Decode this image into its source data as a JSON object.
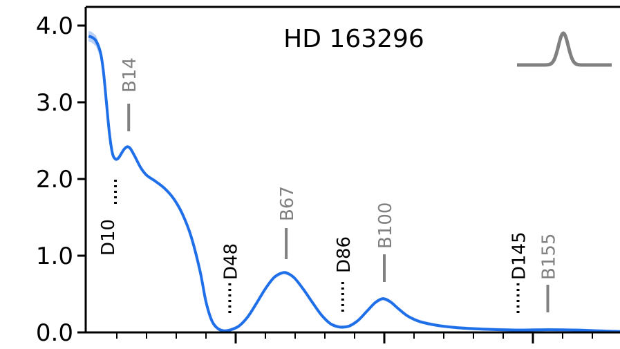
{
  "chart_data": {
    "type": "line",
    "title": "HD 163296",
    "xlabel": "",
    "ylabel": "",
    "xlim": [
      0,
      180
    ],
    "ylim": [
      0,
      4.0
    ],
    "yticks": [
      0.0,
      1.0,
      2.0,
      3.0,
      4.0
    ],
    "ytick_labels": [
      "0.0",
      "1.0",
      "2.0",
      "3.0",
      "4.0"
    ],
    "xtick_major": [
      50,
      100,
      150
    ],
    "xtick_minor": [
      10,
      20,
      30,
      40,
      60,
      70,
      80,
      90,
      110,
      120,
      130,
      140,
      160,
      170
    ],
    "line_color": "#1f6fe8",
    "band_color": "#9dbcf2",
    "series": [
      {
        "values": [
          [
            0.5,
            3.86
          ],
          [
            1.5,
            3.85
          ],
          [
            3,
            3.8
          ],
          [
            4.5,
            3.65
          ],
          [
            5.5,
            3.4
          ],
          [
            6.5,
            3.0
          ],
          [
            7.5,
            2.6
          ],
          [
            8.5,
            2.34
          ],
          [
            9.5,
            2.26
          ],
          [
            10.5,
            2.27
          ],
          [
            11.5,
            2.33
          ],
          [
            12.5,
            2.39
          ],
          [
            13.5,
            2.42
          ],
          [
            14.5,
            2.4
          ],
          [
            16,
            2.3
          ],
          [
            18,
            2.15
          ],
          [
            20,
            2.05
          ],
          [
            23,
            1.97
          ],
          [
            26,
            1.88
          ],
          [
            29,
            1.75
          ],
          [
            32,
            1.55
          ],
          [
            35,
            1.25
          ],
          [
            38,
            0.8
          ],
          [
            40,
            0.4
          ],
          [
            42,
            0.15
          ],
          [
            44,
            0.05
          ],
          [
            46,
            0.02
          ],
          [
            48,
            0.03
          ],
          [
            51,
            0.08
          ],
          [
            54,
            0.2
          ],
          [
            57,
            0.38
          ],
          [
            60,
            0.57
          ],
          [
            63,
            0.72
          ],
          [
            66,
            0.78
          ],
          [
            68,
            0.76
          ],
          [
            70,
            0.7
          ],
          [
            73,
            0.55
          ],
          [
            76,
            0.38
          ],
          [
            79,
            0.22
          ],
          [
            82,
            0.11
          ],
          [
            85,
            0.07
          ],
          [
            88,
            0.08
          ],
          [
            91,
            0.15
          ],
          [
            94,
            0.27
          ],
          [
            97,
            0.39
          ],
          [
            99.5,
            0.44
          ],
          [
            102,
            0.4
          ],
          [
            105,
            0.3
          ],
          [
            108,
            0.21
          ],
          [
            112,
            0.14
          ],
          [
            118,
            0.09
          ],
          [
            125,
            0.06
          ],
          [
            135,
            0.04
          ],
          [
            145,
            0.03
          ],
          [
            155,
            0.035
          ],
          [
            165,
            0.03
          ],
          [
            172,
            0.02
          ],
          [
            180,
            0.01
          ]
        ]
      }
    ],
    "annotations": [
      {
        "label": "B14",
        "x": 14,
        "style": "solid"
      },
      {
        "label": "D10",
        "x": 10,
        "style": "dotted"
      },
      {
        "label": "D48",
        "x": 48,
        "style": "dotted"
      },
      {
        "label": "B67",
        "x": 67,
        "style": "solid"
      },
      {
        "label": "D86",
        "x": 86,
        "style": "dotted"
      },
      {
        "label": "B100",
        "x": 100,
        "style": "solid"
      },
      {
        "label": "D145",
        "x": 145,
        "style": "dotted"
      },
      {
        "label": "B155",
        "x": 155,
        "style": "solid"
      }
    ],
    "annotation_colors": {
      "solid": "#808080",
      "dotted": "#000000"
    },
    "beam_icon": "gaussian-beam-profile"
  }
}
